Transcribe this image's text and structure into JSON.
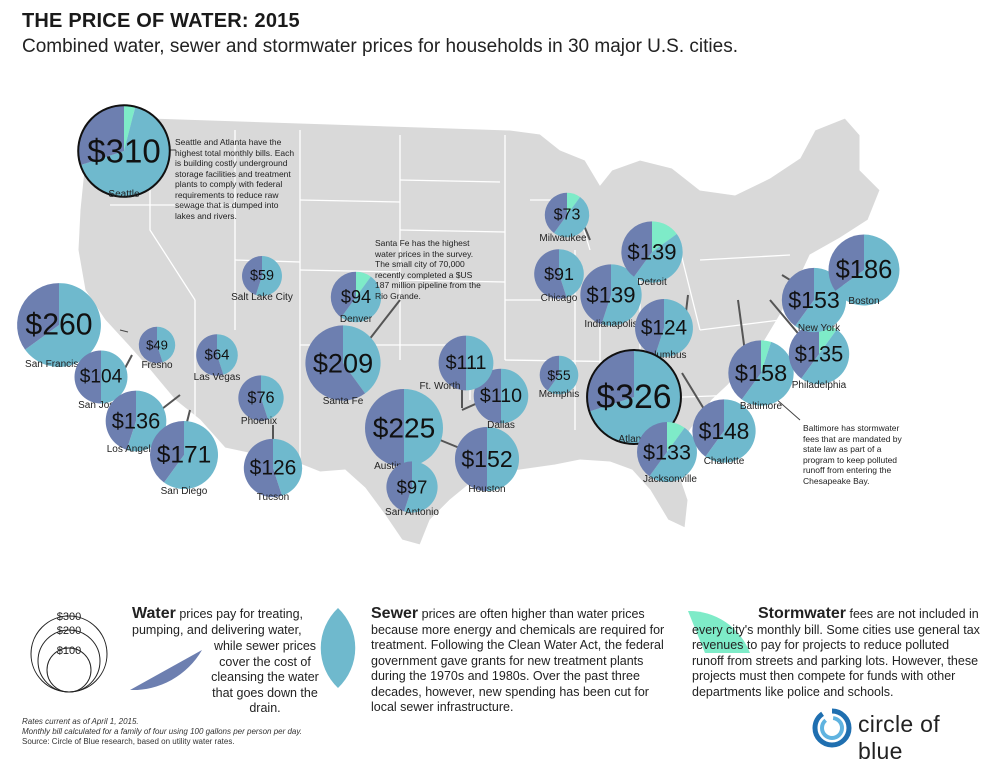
{
  "title": "THE PRICE OF WATER: 2015",
  "subtitle": "Combined water, sewer and stormwater prices for households in 30 major U.S. cities.",
  "colors": {
    "water": "#6d7fb0",
    "sewer": "#6fb9cd",
    "stormwater": "#7eebc8",
    "map": "#d8d8d8"
  },
  "chart_data": {
    "type": "bubble-map",
    "title": "THE PRICE OF WATER: 2015",
    "unit": "USD per month",
    "series": [
      "Water",
      "Sewer",
      "Stormwater"
    ],
    "cities": [
      {
        "name": "Seattle",
        "total": 310,
        "label": "$310",
        "water": 0.3,
        "sewer": 0.66,
        "storm": 0.04
      },
      {
        "name": "San Francisco",
        "total": 260,
        "label": "$260",
        "water": 0.35,
        "sewer": 0.65,
        "storm": 0
      },
      {
        "name": "San Jose",
        "total": 104,
        "label": "$104",
        "water": 0.5,
        "sewer": 0.5,
        "storm": 0
      },
      {
        "name": "Fresno",
        "total": 49,
        "label": "$49",
        "water": 0.55,
        "sewer": 0.45,
        "storm": 0
      },
      {
        "name": "Los Angeles",
        "total": 136,
        "label": "$136",
        "water": 0.45,
        "sewer": 0.55,
        "storm": 0
      },
      {
        "name": "San Diego",
        "total": 171,
        "label": "$171",
        "water": 0.4,
        "sewer": 0.6,
        "storm": 0
      },
      {
        "name": "Las Vegas",
        "total": 64,
        "label": "$64",
        "water": 0.55,
        "sewer": 0.45,
        "storm": 0
      },
      {
        "name": "Salt Lake City",
        "total": 59,
        "label": "$59",
        "water": 0.45,
        "sewer": 0.55,
        "storm": 0
      },
      {
        "name": "Phoenix",
        "total": 76,
        "label": "$76",
        "water": 0.55,
        "sewer": 0.45,
        "storm": 0
      },
      {
        "name": "Tucson",
        "total": 126,
        "label": "$126",
        "water": 0.55,
        "sewer": 0.45,
        "storm": 0
      },
      {
        "name": "Denver",
        "total": 94,
        "label": "$94",
        "water": 0.4,
        "sewer": 0.5,
        "storm": 0.1
      },
      {
        "name": "Santa Fe",
        "total": 209,
        "label": "$209",
        "water": 0.6,
        "sewer": 0.4,
        "storm": 0
      },
      {
        "name": "Austin",
        "total": 225,
        "label": "$225",
        "water": 0.5,
        "sewer": 0.5,
        "storm": 0
      },
      {
        "name": "San Antonio",
        "total": 97,
        "label": "$97",
        "water": 0.45,
        "sewer": 0.55,
        "storm": 0
      },
      {
        "name": "Houston",
        "total": 152,
        "label": "$152",
        "water": 0.5,
        "sewer": 0.5,
        "storm": 0
      },
      {
        "name": "Dallas",
        "total": 110,
        "label": "$110",
        "water": 0.5,
        "sewer": 0.5,
        "storm": 0
      },
      {
        "name": "Ft. Worth",
        "total": 111,
        "label": "$111",
        "water": 0.5,
        "sewer": 0.5,
        "storm": 0
      },
      {
        "name": "Memphis",
        "total": 55,
        "label": "$55",
        "water": 0.4,
        "sewer": 0.6,
        "storm": 0
      },
      {
        "name": "Milwaukee",
        "total": 73,
        "label": "$73",
        "water": 0.4,
        "sewer": 0.5,
        "storm": 0.1
      },
      {
        "name": "Chicago",
        "total": 91,
        "label": "$91",
        "water": 0.55,
        "sewer": 0.45,
        "storm": 0
      },
      {
        "name": "Indianapolis",
        "total": 139,
        "label": "$139",
        "water": 0.45,
        "sewer": 0.55,
        "storm": 0
      },
      {
        "name": "Detroit",
        "total": 139,
        "label": "$139",
        "water": 0.4,
        "sewer": 0.45,
        "storm": 0.15
      },
      {
        "name": "Columbus",
        "total": 124,
        "label": "$124",
        "water": 0.45,
        "sewer": 0.55,
        "storm": 0
      },
      {
        "name": "Atlanta",
        "total": 326,
        "label": "$326",
        "water": 0.3,
        "sewer": 0.7,
        "storm": 0
      },
      {
        "name": "Jacksonville",
        "total": 133,
        "label": "$133",
        "water": 0.4,
        "sewer": 0.5,
        "storm": 0.1
      },
      {
        "name": "Charlotte",
        "total": 148,
        "label": "$148",
        "water": 0.4,
        "sewer": 0.6,
        "storm": 0
      },
      {
        "name": "Baltimore",
        "total": 158,
        "label": "$158",
        "water": 0.4,
        "sewer": 0.55,
        "storm": 0.05
      },
      {
        "name": "Philadelphia",
        "total": 135,
        "label": "$135",
        "water": 0.4,
        "sewer": 0.5,
        "storm": 0.1
      },
      {
        "name": "New York",
        "total": 153,
        "label": "$153",
        "water": 0.4,
        "sewer": 0.6,
        "storm": 0
      },
      {
        "name": "Boston",
        "total": 186,
        "label": "$186",
        "water": 0.35,
        "sewer": 0.65,
        "storm": 0
      }
    ]
  },
  "annotations": {
    "seattle": "Seattle and Atlanta have the highest total monthly bills. Each is building costly underground storage facilities and treatment plants to comply with federal requirements to reduce raw sewage that is dumped into lakes and rivers.",
    "santa_fe": "Santa Fe has the highest water prices in the survey. The small city of 70,000 recently completed a $US 187 million pipeline from the Rio Grande.",
    "baltimore": "Baltimore has stormwater fees that are mandated by state law as part of a program to keep polluted runoff from entering the Chesapeake Bay."
  },
  "legend": {
    "scale_labels": [
      "$300",
      "$200",
      "$100"
    ],
    "water_heading": "Water",
    "water_text": " prices pay for treating, pumping, and delivering water,",
    "water_text2": "while sewer prices cover the cost of cleansing the water that goes down the drain.",
    "sewer_heading": "Sewer",
    "sewer_text": " prices are often higher than water prices because more energy and chemicals are required for treatment. Following the Clean Water Act, the federal government gave grants for new treatment plants during the 1970s and 1980s. Over the past three decades, however, new spending has been cut for local sewer infrastructure.",
    "storm_heading": "Stormwater",
    "storm_text": " fees are not included in every city's monthly bill. Some cities use general tax revenues to pay for projects to reduce polluted runoff from streets and parking lots. However, these projects must then compete for funds with other departments like police and schools."
  },
  "footnotes": {
    "line1": "Rates current as of April 1, 2015.",
    "line2": "Monthly bill calculated for a family of four using 100 gallons per person per day.",
    "line3": "Source: Circle of Blue research, based on utility water rates."
  },
  "logo": {
    "text": "circle of blue"
  }
}
